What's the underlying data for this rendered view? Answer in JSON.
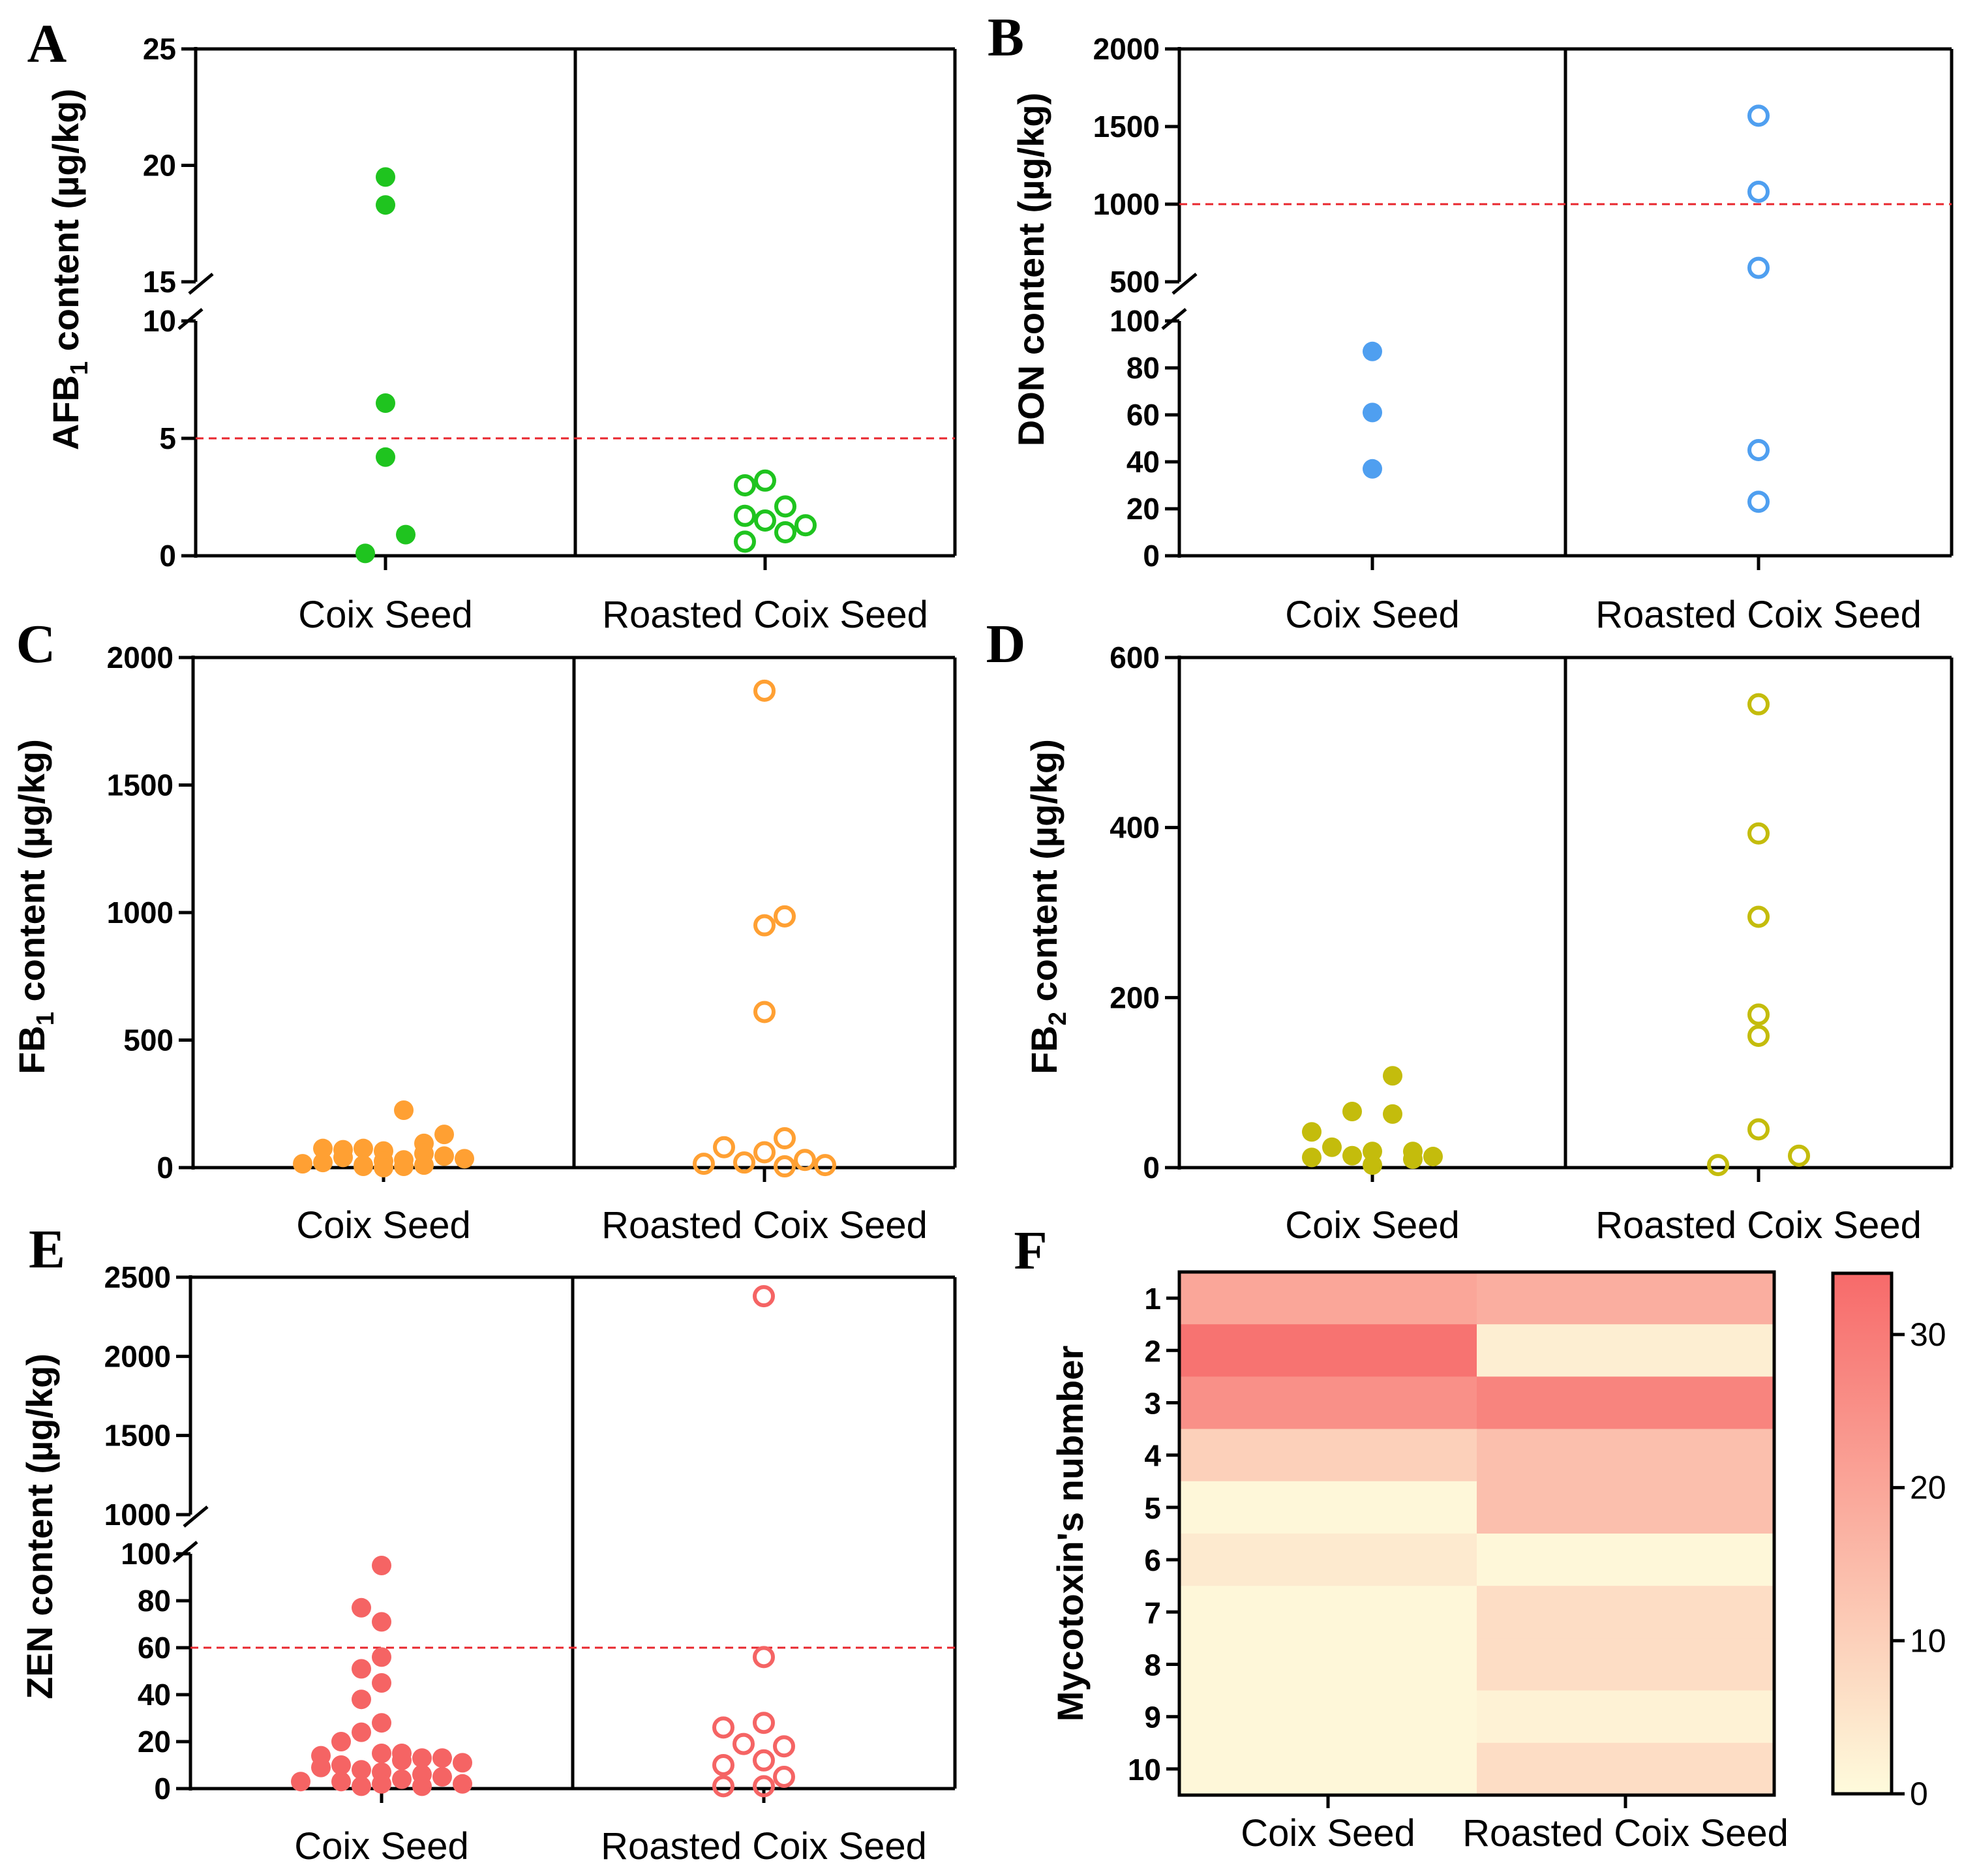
{
  "chart_data": [
    {
      "panel": "A",
      "type": "scatter",
      "ylabel_main": "AFB",
      "ylabel_sub": "1",
      "ylabel_rest": " content (µg/kg)",
      "categories": [
        "Coix Seed",
        "Roasted Coix Seed"
      ],
      "y_tick_labels": [
        "0",
        "5",
        "10",
        "15",
        "20",
        "25"
      ],
      "axis_break": [
        10,
        15
      ],
      "limit_line": 5,
      "color": "#1fc41f",
      "series": [
        {
          "name": "Coix Seed",
          "filled": true,
          "values": [
            19.5,
            18.3,
            6.5,
            4.2,
            0.9,
            0.1
          ],
          "x_offsets": [
            0,
            0,
            0,
            0,
            1,
            -1
          ]
        },
        {
          "name": "Roasted Coix Seed",
          "filled": false,
          "values": [
            3.2,
            3.0,
            2.1,
            1.7,
            1.5,
            1.3,
            1.0,
            0.6
          ],
          "x_offsets": [
            0,
            -1,
            1,
            -1,
            0,
            2,
            1,
            -1
          ]
        }
      ]
    },
    {
      "panel": "B",
      "type": "scatter",
      "ylabel_main": "DON content (µg/kg)",
      "categories": [
        "Coix Seed",
        "Roasted Coix Seed"
      ],
      "y_tick_labels": [
        "0",
        "20",
        "40",
        "60",
        "80",
        "100",
        "500",
        "1000",
        "1500",
        "2000"
      ],
      "axis_break": [
        100,
        500
      ],
      "limit_line": 1000,
      "color": "#4f9ff0",
      "series": [
        {
          "name": "Coix Seed",
          "filled": true,
          "values": [
            87,
            61,
            37
          ],
          "x_offsets": [
            0,
            0,
            0
          ]
        },
        {
          "name": "Roasted Coix Seed",
          "filled": false,
          "values": [
            1570,
            1080,
            590,
            45,
            23
          ],
          "x_offsets": [
            0,
            0,
            0,
            0,
            0
          ]
        }
      ]
    },
    {
      "panel": "C",
      "type": "scatter",
      "ylabel_main": "FB",
      "ylabel_sub": "1",
      "ylabel_rest": " content (µg/kg)",
      "categories": [
        "Coix Seed",
        "Roasted Coix Seed"
      ],
      "y_tick_labels": [
        "0",
        "500",
        "1000",
        "1500",
        "2000"
      ],
      "ylim": [
        0,
        2000
      ],
      "color": "#ffa033",
      "series": [
        {
          "name": "Coix Seed",
          "filled": true,
          "values": [
            225,
            130,
            95,
            75,
            75,
            70,
            65,
            55,
            45,
            40,
            35,
            30,
            25,
            20,
            15,
            10,
            10,
            5,
            5,
            0
          ],
          "x_offsets": [
            1,
            3,
            2,
            -3,
            -1,
            -2,
            0,
            2,
            3,
            -2,
            4,
            1,
            0,
            -3,
            -4,
            2,
            -1,
            1,
            -1,
            0
          ]
        },
        {
          "name": "Roasted Coix Seed",
          "filled": false,
          "values": [
            1870,
            985,
            950,
            610,
            115,
            80,
            60,
            30,
            20,
            15,
            10,
            5
          ],
          "x_offsets": [
            0,
            1,
            0,
            0,
            1,
            -2,
            0,
            2,
            -1,
            -3,
            3,
            1
          ]
        }
      ]
    },
    {
      "panel": "D",
      "type": "scatter",
      "ylabel_main": "FB",
      "ylabel_sub": "2",
      "ylabel_rest": " content (µg/kg)",
      "categories": [
        "Coix Seed",
        "Roasted Coix Seed"
      ],
      "y_tick_labels": [
        "0",
        "200",
        "400",
        "600"
      ],
      "ylim": [
        0,
        600
      ],
      "color": "#c4bc0c",
      "series": [
        {
          "name": "Coix Seed",
          "filled": true,
          "values": [
            108,
            66,
            63,
            42,
            24,
            19,
            19,
            14,
            13,
            12,
            10,
            3
          ],
          "x_offsets": [
            1,
            -1,
            1,
            -3,
            -2,
            2,
            0,
            -1,
            3,
            -3,
            2,
            0
          ]
        },
        {
          "name": "Roasted Coix Seed",
          "filled": false,
          "values": [
            545,
            393,
            295,
            180,
            155,
            45,
            14,
            3
          ],
          "x_offsets": [
            0,
            0,
            0,
            0,
            0,
            0,
            2,
            -2
          ]
        }
      ]
    },
    {
      "panel": "E",
      "type": "scatter",
      "ylabel_main": "ZEN content (µg/kg)",
      "categories": [
        "Coix Seed",
        "Roasted Coix Seed"
      ],
      "y_tick_labels": [
        "0",
        "20",
        "40",
        "60",
        "80",
        "100",
        "1000",
        "1500",
        "2000",
        "2500"
      ],
      "axis_break": [
        100,
        1000
      ],
      "limit_line": 60,
      "color": "#f56464",
      "series": [
        {
          "name": "Coix Seed",
          "filled": true,
          "values": [
            95,
            77,
            71,
            56,
            51,
            45,
            38,
            28,
            24,
            20,
            15,
            15,
            14,
            13,
            13,
            12,
            11,
            10,
            9,
            8,
            7,
            6,
            5,
            4,
            3,
            3,
            2,
            2,
            1,
            1
          ],
          "x_offsets": [
            0,
            -1,
            0,
            0,
            -1,
            0,
            -1,
            0,
            -1,
            -2,
            0,
            1,
            -3,
            2,
            3,
            1,
            4,
            -2,
            -3,
            -1,
            0,
            2,
            3,
            1,
            -4,
            -2,
            4,
            0,
            -1,
            2
          ]
        },
        {
          "name": "Roasted Coix Seed",
          "filled": false,
          "values": [
            2380,
            56,
            28,
            26,
            19,
            18,
            12,
            10,
            5,
            1,
            1
          ],
          "x_offsets": [
            0,
            0,
            0,
            -2,
            -1,
            1,
            0,
            -2,
            1,
            -2,
            0
          ]
        }
      ]
    },
    {
      "panel": "F",
      "type": "heatmap",
      "ylabel": "Mycotoxin's nubmber",
      "columns": [
        "Coix Seed",
        "Roasted Coix Seed"
      ],
      "rows": [
        "1",
        "2",
        "3",
        "4",
        "5",
        "6",
        "7",
        "8",
        "9",
        "10"
      ],
      "values": [
        [
          20,
          18
        ],
        [
          32,
          3
        ],
        [
          25,
          28
        ],
        [
          10,
          14
        ],
        [
          1,
          14
        ],
        [
          4,
          1
        ],
        [
          1,
          7
        ],
        [
          1,
          7
        ],
        [
          1,
          2
        ],
        [
          1,
          7
        ]
      ],
      "colorbar": {
        "min": 0,
        "max": 34,
        "ticks": [
          "0",
          "10",
          "20",
          "30"
        ],
        "low_color": "#fefbdc",
        "high_color": "#f76a6a"
      }
    }
  ]
}
